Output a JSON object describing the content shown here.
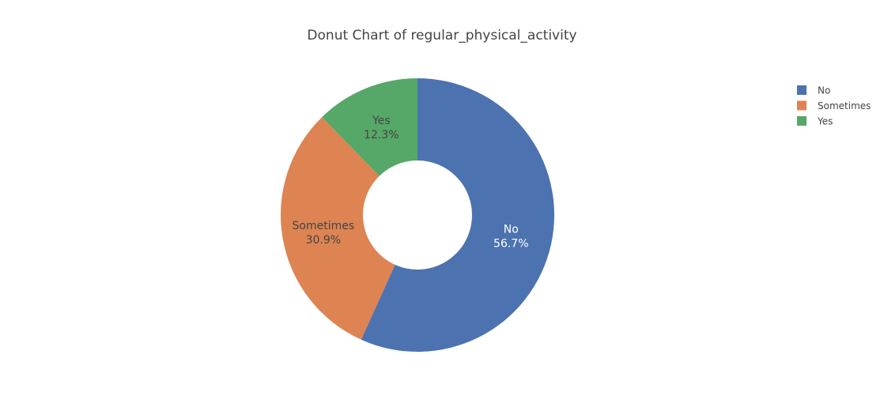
{
  "chart_data": {
    "type": "pie",
    "hole": true,
    "title": "Donut Chart of regular_physical_activity",
    "slices": [
      {
        "label": "No",
        "value": 56.7,
        "percent_label": "56.7%",
        "color": "#4c72b0",
        "text_color": "#ffffff"
      },
      {
        "label": "Sometimes",
        "value": 30.9,
        "percent_label": "30.9%",
        "color": "#dd8452",
        "text_color": "#444444"
      },
      {
        "label": "Yes",
        "value": 12.3,
        "percent_label": "12.3%",
        "color": "#55a868",
        "text_color": "#444444"
      }
    ],
    "legend": {
      "position": "top-right",
      "entries": [
        "No",
        "Sometimes",
        "Yes"
      ]
    }
  }
}
